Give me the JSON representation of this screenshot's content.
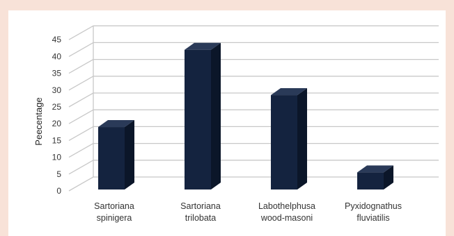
{
  "chart_data": {
    "type": "bar",
    "style": "3d-column",
    "categories": [
      [
        "Sartoriana",
        "spinigera"
      ],
      [
        "Sartoriana",
        "trilobata"
      ],
      [
        "Labothelphusa",
        "wood-masoni"
      ],
      [
        "Pyxidognathus",
        "fluviatilis"
      ]
    ],
    "values": [
      19,
      42,
      28.5,
      5.5
    ],
    "ylabel": "Peecentage",
    "xlabel": "",
    "ylim": [
      0,
      45
    ],
    "yticks": [
      0,
      5,
      10,
      15,
      20,
      25,
      30,
      35,
      40,
      45
    ],
    "grid": true,
    "colors": {
      "bar_front": "#14233f",
      "bar_side": "#0b1629",
      "bar_top": "#2a3a58",
      "grid": "#c8c8c8",
      "background": "#f8e2d8",
      "panel": "#ffffff"
    }
  }
}
